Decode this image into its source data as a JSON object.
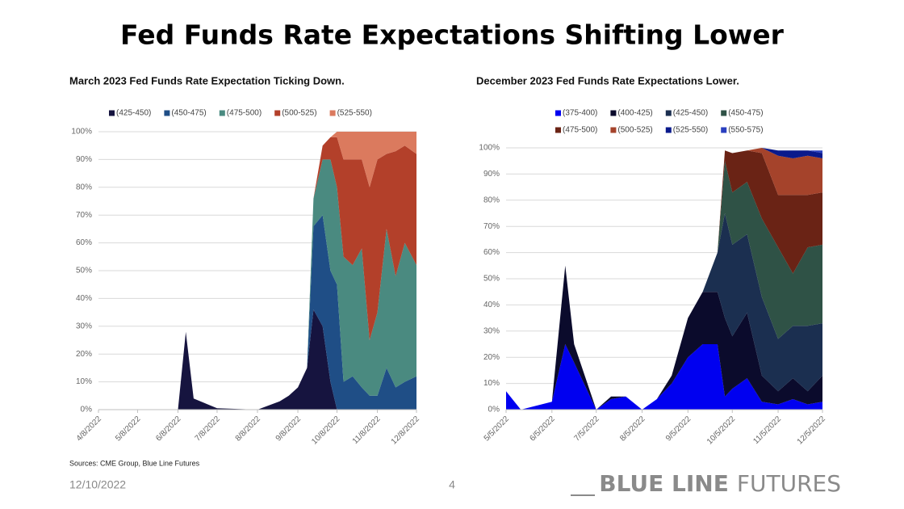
{
  "title": "Fed Funds Rate Expectations Shifting Lower",
  "source": "Sources: CME Group, Blue Line Futures",
  "date": "12/10/2022",
  "page_number": "4",
  "logo": {
    "bold": "BLUE LINE",
    "light": "FUTURES"
  },
  "chart_data": [
    {
      "type": "stacked-area",
      "title": "March 2023 Fed Funds Rate Expectation Ticking Down.",
      "x": [
        "4/8/2022",
        "6/8/2022",
        "6/14/2022",
        "6/20/2022",
        "7/8/2022",
        "8/8/2022",
        "8/25/2022",
        "9/1/2022",
        "9/8/2022",
        "9/15/2022",
        "9/20/2022",
        "9/27/2022",
        "10/3/2022",
        "10/8/2022",
        "10/13/2022",
        "10/20/2022",
        "10/27/2022",
        "11/2/2022",
        "11/8/2022",
        "11/15/2022",
        "11/22/2022",
        "11/29/2022",
        "12/8/2022"
      ],
      "xticks": [
        "4/8/2022",
        "5/8/2022",
        "6/8/2022",
        "7/8/2022",
        "8/8/2022",
        "9/8/2022",
        "10/8/2022",
        "11/8/2022",
        "12/8/2022"
      ],
      "ylim": [
        0,
        100
      ],
      "yticks": [
        {
          "value": 0,
          "label": "0%"
        },
        {
          "value": 10,
          "label": "10%"
        },
        {
          "value": 20,
          "label": "20%"
        },
        {
          "value": 30,
          "label": "30%"
        },
        {
          "value": 40,
          "label": "40%"
        },
        {
          "value": 50,
          "label": "50%"
        },
        {
          "value": 60,
          "label": "60%"
        },
        {
          "value": 70,
          "label": "70%"
        },
        {
          "value": 80,
          "label": "80%"
        },
        {
          "value": 90,
          "label": "90%"
        },
        {
          "value": 100,
          "label": "100%"
        }
      ],
      "grid": true,
      "series": [
        {
          "name": "(425-450)",
          "color": "#16143f",
          "values": [
            0,
            0,
            28,
            4,
            0.5,
            0,
            3,
            5,
            8,
            15,
            36,
            30,
            10,
            0,
            0,
            0,
            0,
            0,
            0,
            0,
            0,
            0,
            0
          ]
        },
        {
          "name": "(450-475)",
          "color": "#1f4e86",
          "values": [
            0,
            0,
            0,
            0,
            0,
            0,
            0,
            0,
            0,
            0,
            30,
            40,
            40,
            45,
            10,
            12,
            8,
            5,
            5,
            15,
            8,
            10,
            12
          ]
        },
        {
          "name": "(475-500)",
          "color": "#4a8a80",
          "values": [
            0,
            0,
            0,
            0,
            0,
            0,
            0,
            0,
            0,
            0,
            10,
            20,
            40,
            35,
            45,
            40,
            50,
            20,
            30,
            50,
            40,
            50,
            40
          ]
        },
        {
          "name": "(500-525)",
          "color": "#b3402a",
          "values": [
            0,
            0,
            0,
            0,
            0,
            0,
            0,
            0,
            0,
            0,
            0,
            5,
            8,
            18,
            35,
            38,
            32,
            55,
            55,
            27,
            45,
            35,
            40
          ]
        },
        {
          "name": "(525-550)",
          "color": "#db7a5e",
          "values": [
            0,
            0,
            0,
            0,
            0,
            0,
            0,
            0,
            0,
            0,
            0,
            0,
            0,
            2,
            10,
            10,
            10,
            20,
            10,
            8,
            7,
            5,
            8
          ]
        }
      ]
    },
    {
      "type": "stacked-area",
      "title": "December 2023 Fed Funds Rate Expectations Lower.",
      "x": [
        "5/5/2022",
        "5/15/2022",
        "6/5/2022",
        "6/14/2022",
        "6/20/2022",
        "7/5/2022",
        "7/15/2022",
        "7/25/2022",
        "8/5/2022",
        "8/15/2022",
        "8/25/2022",
        "9/5/2022",
        "9/15/2022",
        "9/25/2022",
        "9/30/2022",
        "10/5/2022",
        "10/15/2022",
        "10/25/2022",
        "11/5/2022",
        "11/15/2022",
        "11/25/2022",
        "12/5/2022"
      ],
      "xticks": [
        "5/5/2022",
        "6/5/2022",
        "7/5/2022",
        "8/5/2022",
        "9/5/2022",
        "10/5/2022",
        "11/5/2022",
        "12/5/2022"
      ],
      "ylim": [
        0,
        100
      ],
      "yticks": [
        {
          "value": 0,
          "label": "0%"
        },
        {
          "value": 10,
          "label": "10%"
        },
        {
          "value": 20,
          "label": "20%"
        },
        {
          "value": 30,
          "label": "30%"
        },
        {
          "value": 40,
          "label": "40%"
        },
        {
          "value": 50,
          "label": "50%"
        },
        {
          "value": 60,
          "label": "60%"
        },
        {
          "value": 70,
          "label": "70%"
        },
        {
          "value": 80,
          "label": "80%"
        },
        {
          "value": 90,
          "label": "90%"
        },
        {
          "value": 100,
          "label": "100%"
        }
      ],
      "grid": true,
      "series": [
        {
          "name": "(375-400)",
          "color": "#0000f0",
          "values": [
            7,
            0,
            3,
            25,
            18,
            0,
            4,
            5,
            0,
            4,
            10,
            20,
            25,
            25,
            5,
            8,
            12,
            3,
            2,
            4,
            2,
            3
          ]
        },
        {
          "name": "(400-425)",
          "color": "#0b0b2c",
          "values": [
            0,
            0,
            0,
            30,
            7,
            0,
            1,
            0,
            0,
            0,
            3,
            15,
            20,
            20,
            30,
            20,
            25,
            10,
            5,
            8,
            5,
            10
          ]
        },
        {
          "name": "(425-450)",
          "color": "#1b2f50",
          "values": [
            0,
            0,
            0,
            0,
            0,
            0,
            0,
            0,
            0,
            0,
            0,
            0,
            0,
            15,
            40,
            35,
            30,
            30,
            20,
            20,
            25,
            20
          ]
        },
        {
          "name": "(450-475)",
          "color": "#2f5246",
          "values": [
            0,
            0,
            0,
            0,
            0,
            0,
            0,
            0,
            0,
            0,
            0,
            0,
            0,
            0,
            20,
            20,
            20,
            30,
            35,
            20,
            30,
            30
          ]
        },
        {
          "name": "(475-500)",
          "color": "#6a2315",
          "values": [
            0,
            0,
            0,
            0,
            0,
            0,
            0,
            0,
            0,
            0,
            0,
            0,
            0,
            0,
            4,
            15,
            12,
            25,
            20,
            30,
            20,
            20
          ]
        },
        {
          "name": "(500-525)",
          "color": "#a5432b",
          "values": [
            0,
            0,
            0,
            0,
            0,
            0,
            0,
            0,
            0,
            0,
            0,
            0,
            0,
            0,
            0,
            0,
            0,
            2,
            15,
            14,
            15,
            13
          ]
        },
        {
          "name": "(525-550)",
          "color": "#0a1a8c",
          "values": [
            0,
            0,
            0,
            0,
            0,
            0,
            0,
            0,
            0,
            0,
            0,
            0,
            0,
            0,
            0,
            0,
            0,
            0,
            2,
            3,
            2,
            2
          ]
        },
        {
          "name": "(550-575)",
          "color": "#2a3fbf",
          "values": [
            0,
            0,
            0,
            0,
            0,
            0,
            0,
            0,
            0,
            0,
            0,
            0,
            0,
            0,
            0,
            0,
            0,
            0,
            0,
            0,
            0,
            1
          ]
        }
      ]
    }
  ]
}
